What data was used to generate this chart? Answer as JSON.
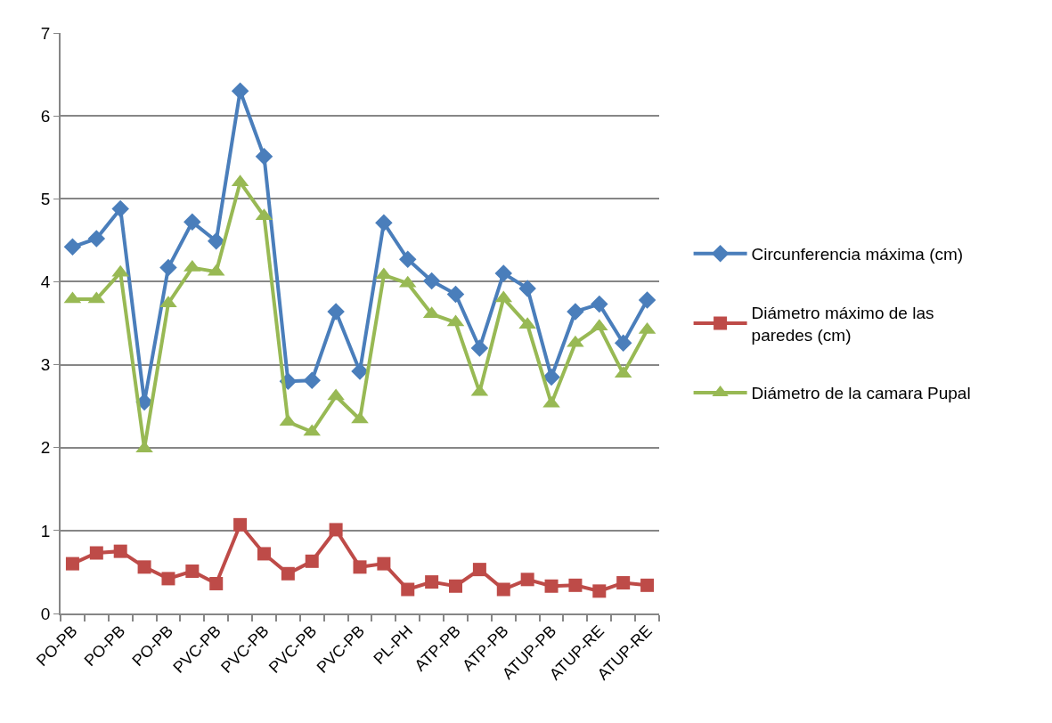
{
  "chart_data": {
    "type": "line",
    "categories": [
      "PO-PB",
      null,
      "PO-PB",
      null,
      "PO-PB",
      null,
      "PVC-PB",
      null,
      "PVC-PB",
      null,
      "PVC-PB",
      null,
      "PVC-PB",
      null,
      "PL-PH",
      null,
      "ATP-PB",
      null,
      "ATP-PB",
      null,
      "ATUP-PB",
      null,
      "ATUP-RE",
      null,
      "ATUP-RE"
    ],
    "ylim": [
      0,
      7
    ],
    "yticks": [
      0,
      1,
      2,
      3,
      4,
      5,
      6,
      7
    ],
    "grid": "y",
    "legend": "right",
    "line_style": "solid",
    "series": [
      {
        "name": "Circunferencia máxima (cm)",
        "color": "#4a7ebb",
        "marker": "diamond",
        "values": [
          4.42,
          4.52,
          4.88,
          2.55,
          4.17,
          4.72,
          4.49,
          6.3,
          5.51,
          2.8,
          2.81,
          3.64,
          2.92,
          4.71,
          4.27,
          4.01,
          3.85,
          3.2,
          4.1,
          3.92,
          2.85,
          3.64,
          3.73,
          3.26,
          3.78
        ]
      },
      {
        "name": "Diámetro máximo de las paredes (cm)",
        "color": "#be4b48",
        "marker": "square",
        "values": [
          0.6,
          0.73,
          0.75,
          0.56,
          0.42,
          0.51,
          0.36,
          1.07,
          0.72,
          0.48,
          0.63,
          1.01,
          0.56,
          0.6,
          0.29,
          0.38,
          0.33,
          0.53,
          0.29,
          0.41,
          0.33,
          0.34,
          0.27,
          0.37,
          0.34
        ]
      },
      {
        "name": "Diámetro de la camara Pupal",
        "color": "#98b954",
        "marker": "triangle",
        "values": [
          3.79,
          3.79,
          4.11,
          1.99,
          3.74,
          4.17,
          4.12,
          5.2,
          4.79,
          2.31,
          2.19,
          2.62,
          2.34,
          4.08,
          3.98,
          3.61,
          3.51,
          2.67,
          3.8,
          3.48,
          2.53,
          3.26,
          3.46,
          2.89,
          3.42
        ]
      }
    ]
  }
}
